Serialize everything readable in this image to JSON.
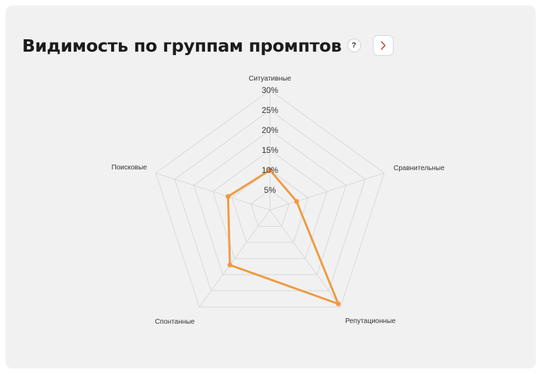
{
  "card": {
    "title": "Видимость по группам промптов",
    "help_label": "?",
    "next_icon": "chevron-right-icon"
  },
  "chart_data": {
    "type": "radar",
    "categories": [
      "Ситуативные",
      "Сравнительные",
      "Репутационные",
      "Спонтанные",
      "Поисковые"
    ],
    "values": [
      10,
      7,
      29,
      17,
      11
    ],
    "tick_labels": [
      "5%",
      "10%",
      "15%",
      "20%",
      "25%",
      "30%"
    ],
    "ticks": [
      5,
      10,
      15,
      20,
      25,
      30
    ],
    "rmax": 30,
    "grid": true,
    "legend": "none",
    "series_color": "#ef9a40",
    "grid_color": "#d8d8d8"
  }
}
